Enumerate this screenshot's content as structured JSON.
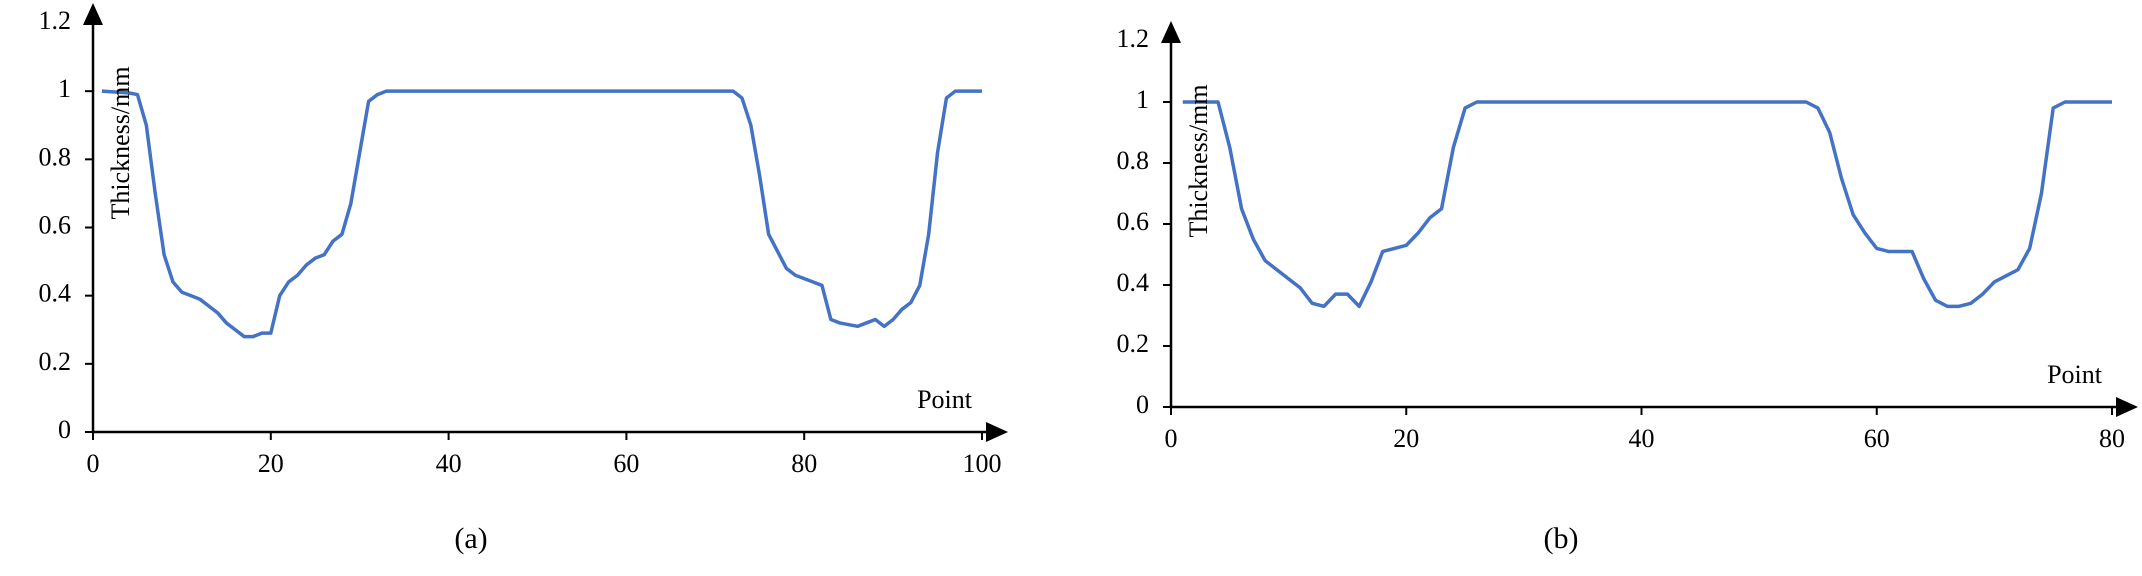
{
  "chart_data": [
    {
      "type": "line",
      "caption": "(a)",
      "xlabel": "Point",
      "ylabel": "Thickness/mm",
      "xlim": [
        0,
        100
      ],
      "xticks": [
        0,
        20,
        40,
        60,
        80,
        100
      ],
      "ylim": [
        0,
        1.2
      ],
      "yticks": [
        0,
        0.2,
        0.4,
        0.6,
        0.8,
        1,
        1.2
      ],
      "grid": false,
      "x": [
        1,
        4,
        5,
        6,
        7,
        8,
        9,
        10,
        11,
        12,
        13,
        14,
        15,
        16,
        17,
        18,
        19,
        20,
        21,
        22,
        23,
        24,
        25,
        26,
        27,
        28,
        29,
        30,
        31,
        32,
        33,
        72,
        73,
        74,
        75,
        76,
        77,
        78,
        79,
        80,
        81,
        82,
        83,
        84,
        86,
        87,
        88,
        89,
        90,
        91,
        92,
        93,
        94,
        95,
        96,
        97,
        100
      ],
      "series": [
        {
          "color": "#4472c4",
          "values": [
            1.0,
            0.995,
            0.99,
            0.9,
            0.7,
            0.52,
            0.44,
            0.41,
            0.4,
            0.39,
            0.37,
            0.35,
            0.32,
            0.3,
            0.28,
            0.28,
            0.29,
            0.29,
            0.4,
            0.44,
            0.46,
            0.49,
            0.51,
            0.52,
            0.56,
            0.58,
            0.67,
            0.82,
            0.97,
            0.99,
            1.0,
            1.0,
            0.98,
            0.9,
            0.75,
            0.58,
            0.53,
            0.48,
            0.46,
            0.45,
            0.44,
            0.43,
            0.33,
            0.32,
            0.31,
            0.32,
            0.33,
            0.31,
            0.33,
            0.36,
            0.38,
            0.43,
            0.58,
            0.82,
            0.98,
            1.0,
            1.0
          ]
        }
      ]
    },
    {
      "type": "line",
      "caption": "(b)",
      "xlabel": "Point",
      "ylabel": "Thickness/mm",
      "xlim": [
        0,
        80
      ],
      "xticks": [
        0,
        20,
        40,
        60,
        80
      ],
      "ylim": [
        0,
        1.2
      ],
      "yticks": [
        0,
        0.2,
        0.4,
        0.6,
        0.8,
        1,
        1.2
      ],
      "grid": false,
      "x": [
        1,
        3,
        4,
        5,
        6,
        7,
        8,
        9,
        10,
        11,
        12,
        13,
        14,
        15,
        16,
        17,
        18,
        19,
        20,
        21,
        22,
        23,
        24,
        25,
        26,
        54,
        55,
        56,
        57,
        58,
        59,
        60,
        61,
        63,
        64,
        65,
        66,
        67,
        68,
        69,
        70,
        71,
        72,
        73,
        74,
        75,
        76,
        80
      ],
      "series": [
        {
          "color": "#4472c4",
          "values": [
            1.0,
            1.0,
            1.0,
            0.85,
            0.65,
            0.55,
            0.48,
            0.45,
            0.42,
            0.39,
            0.34,
            0.33,
            0.37,
            0.37,
            0.33,
            0.41,
            0.51,
            0.52,
            0.53,
            0.57,
            0.62,
            0.65,
            0.85,
            0.98,
            1.0,
            1.0,
            0.98,
            0.9,
            0.75,
            0.63,
            0.57,
            0.52,
            0.51,
            0.51,
            0.42,
            0.35,
            0.33,
            0.33,
            0.34,
            0.37,
            0.41,
            0.43,
            0.45,
            0.52,
            0.7,
            0.98,
            1.0,
            1.0
          ]
        }
      ]
    }
  ]
}
